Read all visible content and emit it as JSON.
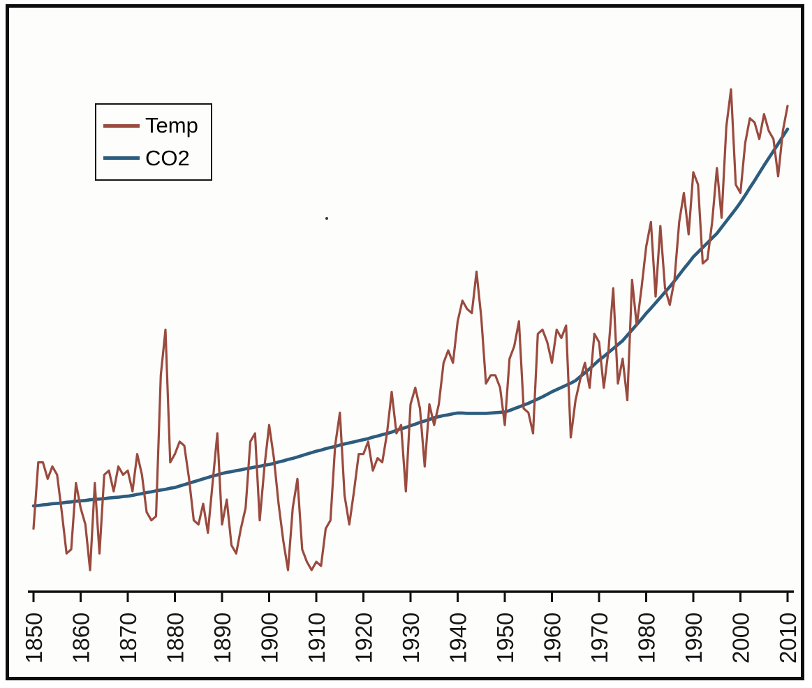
{
  "page": {
    "background": "#fdfdfb",
    "border_color": "#0d0d0d"
  },
  "legend": {
    "items": [
      {
        "label": "Temp",
        "color": "#9a4a3e"
      },
      {
        "label": "CO2",
        "color": "#2c5c7e"
      }
    ]
  },
  "axis": {
    "tick_labels": [
      "1850",
      "1860",
      "1870",
      "1880",
      "1890",
      "1900",
      "1910",
      "1920",
      "1930",
      "1940",
      "1950",
      "1960",
      "1970",
      "1980",
      "1990",
      "2000",
      "2010"
    ]
  },
  "chart_data": {
    "type": "line",
    "title": "",
    "xlabel": "",
    "ylabel": "",
    "grid": false,
    "legend_position": "top-left",
    "y_axis_shown": false,
    "normalization": "each series independently scaled to plot height",
    "x_tick_rotation": 90,
    "x": {
      "start": 1850,
      "end": 2010,
      "step": 1
    },
    "x_tick_labels": [
      "1850",
      "1860",
      "1870",
      "1880",
      "1890",
      "1900",
      "1910",
      "1920",
      "1930",
      "1940",
      "1950",
      "1960",
      "1970",
      "1980",
      "1990",
      "2000",
      "2010"
    ],
    "series": [
      {
        "name": "Temp",
        "color": "#9a4a3e",
        "values": [
          -0.45,
          -0.29,
          -0.29,
          -0.33,
          -0.3,
          -0.32,
          -0.41,
          -0.51,
          -0.5,
          -0.34,
          -0.4,
          -0.44,
          -0.55,
          -0.34,
          -0.51,
          -0.32,
          -0.31,
          -0.36,
          -0.3,
          -0.32,
          -0.31,
          -0.36,
          -0.27,
          -0.32,
          -0.41,
          -0.43,
          -0.42,
          -0.08,
          0.03,
          -0.29,
          -0.27,
          -0.24,
          -0.25,
          -0.33,
          -0.43,
          -0.44,
          -0.39,
          -0.46,
          -0.34,
          -0.22,
          -0.44,
          -0.38,
          -0.49,
          -0.51,
          -0.45,
          -0.4,
          -0.24,
          -0.22,
          -0.43,
          -0.3,
          -0.2,
          -0.28,
          -0.39,
          -0.48,
          -0.55,
          -0.4,
          -0.33,
          -0.5,
          -0.53,
          -0.55,
          -0.53,
          -0.54,
          -0.45,
          -0.43,
          -0.25,
          -0.17,
          -0.37,
          -0.44,
          -0.36,
          -0.27,
          -0.27,
          -0.24,
          -0.31,
          -0.28,
          -0.29,
          -0.22,
          -0.12,
          -0.22,
          -0.2,
          -0.36,
          -0.15,
          -0.11,
          -0.16,
          -0.3,
          -0.15,
          -0.2,
          -0.15,
          -0.05,
          -0.02,
          -0.05,
          0.05,
          0.1,
          0.08,
          0.07,
          0.17,
          0.06,
          -0.1,
          -0.08,
          -0.08,
          -0.11,
          -0.2,
          -0.04,
          -0.01,
          0.05,
          -0.16,
          -0.17,
          -0.22,
          0.02,
          0.03,
          0.0,
          -0.05,
          0.03,
          0.01,
          0.04,
          -0.23,
          -0.14,
          -0.09,
          -0.05,
          -0.11,
          0.02,
          0.0,
          -0.11,
          -0.02,
          0.13,
          -0.1,
          -0.04,
          -0.14,
          0.15,
          0.04,
          0.13,
          0.23,
          0.29,
          0.11,
          0.28,
          0.13,
          0.09,
          0.15,
          0.29,
          0.36,
          0.26,
          0.41,
          0.38,
          0.19,
          0.2,
          0.29,
          0.42,
          0.3,
          0.52,
          0.61,
          0.38,
          0.36,
          0.48,
          0.54,
          0.53,
          0.49,
          0.55,
          0.51,
          0.49,
          0.4,
          0.51,
          0.57
        ]
      },
      {
        "name": "CO2",
        "color": "#2c5c7e",
        "values": [
          285.2,
          285.3,
          285.5,
          285.6,
          285.8,
          285.9,
          286.0,
          286.2,
          286.3,
          286.5,
          286.6,
          286.7,
          286.9,
          287.0,
          287.1,
          287.2,
          287.4,
          287.5,
          287.6,
          287.8,
          287.9,
          288.1,
          288.4,
          288.6,
          288.9,
          289.1,
          289.4,
          289.6,
          289.8,
          290.1,
          290.3,
          290.7,
          291.1,
          291.5,
          291.9,
          292.3,
          292.7,
          293.1,
          293.5,
          293.8,
          294.2,
          294.5,
          294.7,
          295.0,
          295.2,
          295.5,
          295.7,
          296.0,
          296.2,
          296.5,
          296.7,
          297.0,
          297.4,
          297.7,
          298.1,
          298.4,
          298.8,
          299.2,
          299.6,
          300.0,
          300.4,
          300.7,
          301.1,
          301.4,
          301.7,
          302.1,
          302.4,
          302.7,
          303.0,
          303.3,
          303.6,
          303.9,
          304.3,
          304.6,
          305.0,
          305.3,
          305.7,
          306.2,
          306.6,
          307.0,
          307.5,
          307.9,
          308.4,
          308.8,
          309.2,
          309.7,
          310.0,
          310.3,
          310.5,
          310.8,
          311.0,
          311.0,
          310.9,
          310.9,
          310.9,
          310.9,
          310.9,
          311.0,
          311.1,
          311.2,
          311.3,
          311.7,
          312.2,
          312.7,
          313.2,
          313.7,
          314.3,
          314.9,
          315.5,
          316.2,
          316.9,
          317.5,
          318.1,
          318.7,
          319.3,
          320.0,
          321.1,
          322.2,
          323.3,
          324.5,
          325.7,
          326.7,
          327.8,
          328.9,
          330.0,
          331.1,
          332.6,
          334.1,
          335.6,
          337.1,
          338.7,
          340.1,
          341.6,
          343.1,
          344.6,
          346.1,
          347.7,
          349.4,
          351.1,
          352.7,
          354.4,
          355.7,
          357.0,
          358.3,
          359.6,
          360.9,
          362.6,
          364.3,
          366.0,
          367.7,
          369.5,
          371.5,
          373.6,
          375.6,
          377.7,
          379.8,
          381.8,
          383.8,
          385.8,
          387.9,
          389.9
        ]
      }
    ]
  }
}
